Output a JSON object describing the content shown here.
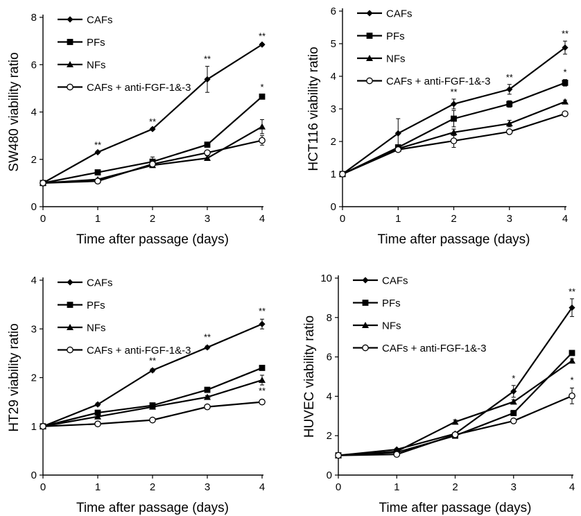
{
  "chart_data": [
    {
      "type": "line",
      "ylabel": "SW480 viability ratio",
      "xlabel": "Time after passage (days)",
      "x": [
        0,
        1,
        2,
        3,
        4
      ],
      "xticks": [
        "0",
        "1",
        "2",
        "3",
        "4"
      ],
      "yticks": [
        "0",
        "2",
        "4",
        "6",
        "8"
      ],
      "xlim": [
        0,
        4
      ],
      "ylim": [
        0,
        8
      ],
      "legend_position": "top-left",
      "series": [
        {
          "name": "CAFs",
          "marker": "diamond",
          "values": [
            1.0,
            2.3,
            3.28,
            5.38,
            6.85
          ],
          "errors": [
            0,
            0.05,
            0.05,
            0.55,
            0.05
          ]
        },
        {
          "name": "PFs",
          "marker": "square",
          "values": [
            1.0,
            1.45,
            1.9,
            2.62,
            4.65
          ],
          "errors": [
            0,
            0.05,
            0.2,
            0.1,
            0.1
          ]
        },
        {
          "name": "NFs",
          "marker": "triangle",
          "values": [
            1.0,
            1.15,
            1.75,
            2.05,
            3.38
          ],
          "errors": [
            0,
            0.05,
            0.1,
            0.1,
            0.3
          ]
        },
        {
          "name": "CAFs + anti-FGF-1&-3",
          "marker": "circle",
          "values": [
            1.0,
            1.08,
            1.8,
            2.28,
            2.8
          ],
          "errors": [
            0,
            0.05,
            0.05,
            0.1,
            0.2
          ]
        }
      ],
      "annotations": [
        {
          "x": 1,
          "y": 2.3,
          "text": "**"
        },
        {
          "x": 2,
          "y": 3.28,
          "text": "**"
        },
        {
          "x": 3,
          "y": 5.93,
          "text": "**"
        },
        {
          "x": 4,
          "y": 6.9,
          "text": "**"
        },
        {
          "x": 4,
          "y": 4.75,
          "text": "*"
        }
      ]
    },
    {
      "type": "line",
      "ylabel": "HCT116 viability ratio",
      "xlabel": "Time after passage (days)",
      "x": [
        0,
        1,
        2,
        3,
        4
      ],
      "xticks": [
        "0",
        "1",
        "2",
        "3",
        "4"
      ],
      "yticks": [
        "0",
        "1",
        "2",
        "3",
        "4",
        "5",
        "6"
      ],
      "xlim": [
        0,
        4
      ],
      "ylim": [
        0,
        6
      ],
      "legend_position": "top-left",
      "series": [
        {
          "name": "CAFs",
          "marker": "diamond",
          "values": [
            1.0,
            2.25,
            3.15,
            3.6,
            4.88
          ],
          "errors": [
            0,
            0.45,
            0.15,
            0.15,
            0.2
          ]
        },
        {
          "name": "PFs",
          "marker": "square",
          "values": [
            1.0,
            1.82,
            2.7,
            3.15,
            3.8
          ],
          "errors": [
            0,
            0.05,
            0.25,
            0.1,
            0.1
          ]
        },
        {
          "name": "NFs",
          "marker": "triangle",
          "values": [
            1.0,
            1.78,
            2.28,
            2.55,
            3.22
          ],
          "errors": [
            0,
            0.05,
            0.1,
            0.1,
            0.05
          ]
        },
        {
          "name": "CAFs + anti-FGF-1&-3",
          "marker": "circle",
          "values": [
            1.0,
            1.75,
            2.02,
            2.3,
            2.85
          ],
          "errors": [
            0,
            0.05,
            0.2,
            0.05,
            0.05
          ]
        }
      ],
      "annotations": [
        {
          "x": 2,
          "y": 3.3,
          "text": "**"
        },
        {
          "x": 3,
          "y": 3.75,
          "text": "**"
        },
        {
          "x": 4,
          "y": 5.08,
          "text": "**"
        },
        {
          "x": 4,
          "y": 3.9,
          "text": "*"
        }
      ]
    },
    {
      "type": "line",
      "ylabel": "HT29 viability ratio",
      "xlabel": "Time after passage (days)",
      "x": [
        0,
        1,
        2,
        3,
        4
      ],
      "xticks": [
        "0",
        "1",
        "2",
        "3",
        "4"
      ],
      "yticks": [
        "0",
        "1",
        "2",
        "3",
        "4"
      ],
      "xlim": [
        0,
        4
      ],
      "ylim": [
        0,
        4
      ],
      "legend_position": "top-left",
      "series": [
        {
          "name": "CAFs",
          "marker": "diamond",
          "values": [
            1.0,
            1.45,
            2.15,
            2.62,
            3.1
          ],
          "errors": [
            0,
            0.03,
            0.03,
            0.03,
            0.1
          ]
        },
        {
          "name": "PFs",
          "marker": "square",
          "values": [
            1.0,
            1.28,
            1.43,
            1.75,
            2.2
          ],
          "errors": [
            0,
            0.03,
            0.03,
            0.03,
            0.03
          ]
        },
        {
          "name": "NFs",
          "marker": "triangle",
          "values": [
            1.0,
            1.2,
            1.4,
            1.6,
            1.95
          ],
          "errors": [
            0,
            0.03,
            0.03,
            0.03,
            0.1
          ]
        },
        {
          "name": "CAFs + anti-FGF-1&-3",
          "marker": "circle",
          "values": [
            1.0,
            1.05,
            1.13,
            1.4,
            1.5
          ],
          "errors": [
            0,
            0.03,
            0.03,
            0.03,
            0.05
          ]
        }
      ],
      "annotations": [
        {
          "x": 2,
          "y": 2.2,
          "text": "**"
        },
        {
          "x": 3,
          "y": 2.68,
          "text": "**"
        },
        {
          "x": 4,
          "y": 3.22,
          "text": "**"
        },
        {
          "x": 3,
          "y": 1.4,
          "text": "**"
        },
        {
          "x": 4,
          "y": 1.58,
          "text": "**"
        }
      ]
    },
    {
      "type": "line",
      "ylabel": "HUVEC viability ratio",
      "xlabel": "Time after passage (days)",
      "x": [
        0,
        1,
        2,
        3,
        4
      ],
      "xticks": [
        "0",
        "1",
        "2",
        "3",
        "4"
      ],
      "yticks": [
        "0",
        "2",
        "4",
        "6",
        "8",
        "10"
      ],
      "xlim": [
        0,
        4
      ],
      "ylim": [
        0,
        10
      ],
      "legend_position": "top-left",
      "series": [
        {
          "name": "CAFs",
          "marker": "diamond",
          "values": [
            1.0,
            1.3,
            2.1,
            4.25,
            8.5
          ],
          "errors": [
            0,
            0.05,
            0.05,
            0.3,
            0.45
          ]
        },
        {
          "name": "PFs",
          "marker": "square",
          "values": [
            1.0,
            1.15,
            2.0,
            3.15,
            6.2
          ],
          "errors": [
            0,
            0.05,
            0.05,
            0.1,
            0.1
          ]
        },
        {
          "name": "NFs",
          "marker": "triangle",
          "values": [
            1.0,
            1.2,
            2.7,
            3.72,
            5.8
          ],
          "errors": [
            0,
            0.05,
            0.1,
            0.1,
            0.1
          ]
        },
        {
          "name": "CAFs + anti-FGF-1&-3",
          "marker": "circle",
          "values": [
            1.0,
            1.05,
            2.05,
            2.75,
            4.02
          ],
          "errors": [
            0,
            0.05,
            0.05,
            0.05,
            0.4
          ]
        }
      ],
      "annotations": [
        {
          "x": 3,
          "y": 4.55,
          "text": "*"
        },
        {
          "x": 4,
          "y": 8.95,
          "text": "**"
        },
        {
          "x": 3,
          "y": 2.75,
          "text": "**"
        },
        {
          "x": 4,
          "y": 4.45,
          "text": "*"
        }
      ]
    }
  ]
}
